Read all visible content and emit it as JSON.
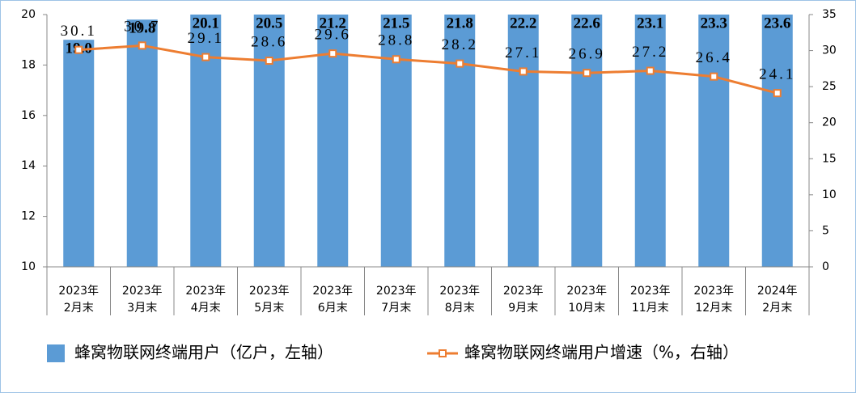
{
  "chart_data": {
    "type": "bar",
    "categories": [
      [
        "2023年",
        "2月末"
      ],
      [
        "2023年",
        "3月末"
      ],
      [
        "2023年",
        "4月末"
      ],
      [
        "2023年",
        "5月末"
      ],
      [
        "2023年",
        "6月末"
      ],
      [
        "2023年",
        "7月末"
      ],
      [
        "2023年",
        "8月末"
      ],
      [
        "2023年",
        "9月末"
      ],
      [
        "2023年",
        "10月末"
      ],
      [
        "2023年",
        "11月末"
      ],
      [
        "2023年",
        "12月末"
      ],
      [
        "2024年",
        "2月末"
      ]
    ],
    "series": [
      {
        "name": "蜂窝物联网终端用户（亿户，左轴）",
        "type": "bar",
        "color": "#5b9bd5",
        "values": [
          19.0,
          19.8,
          20.1,
          20.5,
          21.2,
          21.5,
          21.8,
          22.2,
          22.6,
          23.1,
          23.3,
          23.6
        ],
        "value_labels": [
          "19.0",
          "19.8",
          "20.1",
          "20.5",
          "21.2",
          "21.5",
          "21.8",
          "22.2",
          "22.6",
          "23.1",
          "23.3",
          "23.6"
        ]
      },
      {
        "name": "蜂窝物联网终端用户增速（%，右轴）",
        "type": "line",
        "axis": "y2",
        "color": "#ed7d31",
        "values": [
          30.1,
          30.7,
          29.1,
          28.6,
          29.6,
          28.8,
          28.2,
          27.1,
          26.9,
          27.2,
          26.4,
          24.1
        ]
      }
    ],
    "ylim": [
      10,
      20
    ],
    "yticks": [
      10,
      12,
      14,
      16,
      18,
      20
    ],
    "y2lim": [
      0,
      35
    ],
    "y2ticks": [
      0,
      5,
      10,
      15,
      20,
      25,
      30,
      35
    ],
    "legend": "bottom"
  }
}
